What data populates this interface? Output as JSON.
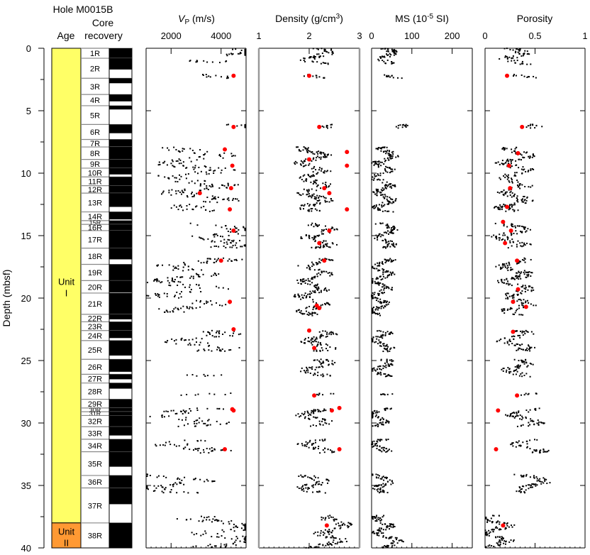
{
  "figure": {
    "hole_title": "Hole M0015B",
    "age_header": "Age",
    "core_header_line1": "Core",
    "core_header_line2": "recovery",
    "depth_axis_label": "Depth (mbsf)",
    "depth_ticks": [
      "0",
      "5",
      "10",
      "15",
      "20",
      "25",
      "30",
      "35",
      "40"
    ]
  },
  "chart_data": [
    {
      "type": "table",
      "name": "age-column",
      "title": "Age",
      "units": [
        {
          "label_line1": "Unit",
          "label_line2": "I",
          "top": 0,
          "bottom": 38.0,
          "color": "#ffff66"
        },
        {
          "label_line1": "Unit",
          "label_line2": "II",
          "top": 38.0,
          "bottom": 40.0,
          "color": "#ff9933"
        }
      ],
      "ylim": [
        0,
        40
      ]
    },
    {
      "type": "table",
      "name": "core-recovery",
      "title": "Core recovery",
      "cores": [
        {
          "label": "1R",
          "top": 0.0,
          "bottom": 0.8,
          "recovered": 0.8
        },
        {
          "label": "2R",
          "top": 0.8,
          "bottom": 2.4,
          "recovered": 0.9
        },
        {
          "label": "3R",
          "top": 2.4,
          "bottom": 3.7,
          "recovered": 0.4
        },
        {
          "label": "4R",
          "top": 3.7,
          "bottom": 4.6,
          "recovered": 0.55
        },
        {
          "label": "5R",
          "top": 4.6,
          "bottom": 6.1,
          "recovered": 0.3
        },
        {
          "label": "6R",
          "top": 6.1,
          "bottom": 7.3,
          "recovered": 0.7
        },
        {
          "label": "7R",
          "top": 7.3,
          "bottom": 7.9,
          "recovered": 0.6
        },
        {
          "label": "8R",
          "top": 7.9,
          "bottom": 8.9,
          "recovered": 1.0
        },
        {
          "label": "9R",
          "top": 8.9,
          "bottom": 9.6,
          "recovered": 0.7
        },
        {
          "label": "10R",
          "top": 9.6,
          "bottom": 10.3,
          "recovered": 0.5
        },
        {
          "label": "11R",
          "top": 10.3,
          "bottom": 11.0,
          "recovered": 0.7
        },
        {
          "label": "12R",
          "top": 11.0,
          "bottom": 11.6,
          "recovered": 0.6
        },
        {
          "label": "13R",
          "top": 11.6,
          "bottom": 13.1,
          "recovered": 1.1
        },
        {
          "label": "14R",
          "top": 13.1,
          "bottom": 13.8,
          "recovered": 0.6
        },
        {
          "label": "15R",
          "top": 13.8,
          "bottom": 14.1,
          "recovered": 0.3
        },
        {
          "label": "16R",
          "top": 14.1,
          "bottom": 14.6,
          "recovered": 0.5
        },
        {
          "label": "17R",
          "top": 14.6,
          "bottom": 16.0,
          "recovered": 1.4
        },
        {
          "label": "18R",
          "top": 16.0,
          "bottom": 17.3,
          "recovered": 0.9
        },
        {
          "label": "19R",
          "top": 17.3,
          "bottom": 18.6,
          "recovered": 1.3
        },
        {
          "label": "20R",
          "top": 18.6,
          "bottom": 19.6,
          "recovered": 0.95
        },
        {
          "label": "21R",
          "top": 19.6,
          "bottom": 21.3,
          "recovered": 1.7
        },
        {
          "label": "22R",
          "top": 21.3,
          "bottom": 21.9,
          "recovered": 0.4
        },
        {
          "label": "23R",
          "top": 21.9,
          "bottom": 22.6,
          "recovered": 0.7
        },
        {
          "label": "24R",
          "top": 22.6,
          "bottom": 23.4,
          "recovered": 0.6
        },
        {
          "label": "25R",
          "top": 23.4,
          "bottom": 24.9,
          "recovered": 1.2
        },
        {
          "label": "26R",
          "top": 24.9,
          "bottom": 26.1,
          "recovered": 1.0
        },
        {
          "label": "27R",
          "top": 26.1,
          "bottom": 26.8,
          "recovered": 0.4
        },
        {
          "label": "28R",
          "top": 26.8,
          "bottom": 28.1,
          "recovered": 0.45
        },
        {
          "label": "29R",
          "top": 28.1,
          "bottom": 28.8,
          "recovered": 0.7
        },
        {
          "label": "30R",
          "top": 28.8,
          "bottom": 29.1,
          "recovered": 0.3
        },
        {
          "label": "31R",
          "top": 29.1,
          "bottom": 29.4,
          "recovered": 0.3
        },
        {
          "label": "32R",
          "top": 29.4,
          "bottom": 30.3,
          "recovered": 0.9
        },
        {
          "label": "33R",
          "top": 30.3,
          "bottom": 31.3,
          "recovered": 0.7
        },
        {
          "label": "34R",
          "top": 31.3,
          "bottom": 32.3,
          "recovered": 1.0
        },
        {
          "label": "35R",
          "top": 32.3,
          "bottom": 34.2,
          "recovered": 1.2
        },
        {
          "label": "36R",
          "top": 34.2,
          "bottom": 35.2,
          "recovered": 1.0
        },
        {
          "label": "37R",
          "top": 35.2,
          "bottom": 38.0,
          "recovered": 1.3
        },
        {
          "label": "38R",
          "top": 38.0,
          "bottom": 40.0,
          "recovered": 2.0
        }
      ],
      "ylim": [
        0,
        40
      ]
    },
    {
      "type": "scatter",
      "name": "vp",
      "title_main": "V",
      "title_sub": "P",
      "title_units": " (m/s)",
      "xlim": [
        1000,
        5000
      ],
      "xticks": [
        2000,
        4000
      ],
      "ylim": [
        0,
        40
      ],
      "logger_zones": [
        [
          0,
          0.6
        ],
        [
          0.9,
          1.2
        ],
        [
          2.1,
          2.4
        ],
        [
          6.1,
          6.4
        ],
        [
          7.9,
          13.1
        ],
        [
          14.0,
          16.0
        ],
        [
          16.8,
          20.0
        ],
        [
          20.2,
          21.2
        ],
        [
          22.6,
          24.3
        ],
        [
          26.1,
          26.3
        ],
        [
          27.6,
          27.8
        ],
        [
          28.8,
          30.3
        ],
        [
          31.3,
          32.4
        ],
        [
          34.1,
          35.6
        ],
        [
          37.4,
          40.0
        ]
      ],
      "logger_center": [
        [
          0,
          4300
        ],
        [
          6.2,
          3800
        ],
        [
          8.5,
          3000
        ],
        [
          10,
          2800
        ],
        [
          12,
          3200
        ],
        [
          15,
          4300
        ],
        [
          18,
          2600
        ],
        [
          20,
          2600
        ],
        [
          23,
          3300
        ],
        [
          29.5,
          2600
        ],
        [
          32,
          3000
        ],
        [
          35,
          2000
        ],
        [
          38.5,
          4600
        ],
        [
          40,
          4300
        ]
      ],
      "series": [
        {
          "name": "MSCL",
          "color": "#000000"
        },
        {
          "name": "Discrete",
          "color": "#ff0000",
          "points": [
            [
              2.2,
              4500
            ],
            [
              6.3,
              4500
            ],
            [
              8.1,
              4150
            ],
            [
              9.4,
              4450
            ],
            [
              11.2,
              4400
            ],
            [
              11.6,
              3150
            ],
            [
              12.9,
              4350
            ],
            [
              14.6,
              4500
            ],
            [
              17.0,
              4000
            ],
            [
              20.3,
              4350
            ],
            [
              22.5,
              4500
            ],
            [
              28.9,
              4450
            ],
            [
              29.0,
              4500
            ],
            [
              32.1,
              4150
            ]
          ]
        }
      ]
    },
    {
      "type": "scatter",
      "name": "density",
      "title_main": "Density (g/cm",
      "title_sup": "3",
      "title_end": ")",
      "xlim": [
        1,
        3
      ],
      "xticks": [
        1,
        2,
        3
      ],
      "ylim": [
        0,
        40
      ],
      "logger_zones": [
        [
          0,
          1.3
        ],
        [
          2.1,
          2.4
        ],
        [
          6.1,
          6.4
        ],
        [
          7.9,
          13.1
        ],
        [
          14.0,
          16.0
        ],
        [
          16.8,
          21.4
        ],
        [
          22.6,
          24.3
        ],
        [
          24.9,
          26.3
        ],
        [
          27.6,
          27.8
        ],
        [
          28.8,
          30.3
        ],
        [
          31.3,
          32.4
        ],
        [
          34.1,
          35.6
        ],
        [
          37.4,
          40.0
        ]
      ],
      "logger_center": [
        [
          0,
          2.2
        ],
        [
          6.2,
          2.15
        ],
        [
          9,
          2.05
        ],
        [
          12,
          2.1
        ],
        [
          15,
          2.2
        ],
        [
          18,
          2.1
        ],
        [
          20,
          2.05
        ],
        [
          23,
          2.2
        ],
        [
          29.5,
          2.1
        ],
        [
          32,
          2.15
        ],
        [
          35,
          2.05
        ],
        [
          37.6,
          2.6
        ],
        [
          39,
          2.45
        ],
        [
          40,
          2.3
        ]
      ],
      "series": [
        {
          "name": "MSCL",
          "color": "#000000"
        },
        {
          "name": "Discrete",
          "color": "#ff0000",
          "points": [
            [
              2.2,
              2.0
            ],
            [
              6.3,
              2.2
            ],
            [
              8.3,
              2.75
            ],
            [
              8.9,
              2.0
            ],
            [
              9.4,
              2.75
            ],
            [
              11.2,
              2.3
            ],
            [
              11.6,
              2.4
            ],
            [
              12.9,
              2.75
            ],
            [
              14.6,
              2.4
            ],
            [
              15.6,
              2.2
            ],
            [
              17.0,
              2.3
            ],
            [
              20.6,
              2.15
            ],
            [
              20.8,
              2.2
            ],
            [
              22.6,
              2.0
            ],
            [
              24.0,
              2.1
            ],
            [
              27.8,
              2.1
            ],
            [
              28.8,
              2.6
            ],
            [
              29.0,
              2.45
            ],
            [
              32.1,
              2.6
            ],
            [
              38.2,
              2.35
            ]
          ]
        }
      ]
    },
    {
      "type": "scatter",
      "name": "ms",
      "title_main": "MS (10",
      "title_sup": "-5",
      "title_end": " SI)",
      "xlim": [
        0,
        250
      ],
      "xticks": [
        0,
        100,
        200
      ],
      "ylim": [
        0,
        40
      ],
      "logger_zones": [
        [
          0,
          1.3
        ],
        [
          2.1,
          2.4
        ],
        [
          6.1,
          6.4
        ],
        [
          7.9,
          13.1
        ],
        [
          14.0,
          16.0
        ],
        [
          16.8,
          21.4
        ],
        [
          22.6,
          24.3
        ],
        [
          24.9,
          26.3
        ],
        [
          27.6,
          27.8
        ],
        [
          28.8,
          30.3
        ],
        [
          31.3,
          32.4
        ],
        [
          34.1,
          35.6
        ],
        [
          37.4,
          40.0
        ]
      ],
      "logger_center": [
        [
          0,
          30
        ],
        [
          2.2,
          60
        ],
        [
          6.2,
          60
        ],
        [
          10,
          25
        ],
        [
          14.5,
          40
        ],
        [
          18,
          25
        ],
        [
          22,
          15
        ],
        [
          25,
          30
        ],
        [
          30,
          15
        ],
        [
          34,
          25
        ],
        [
          35.5,
          30
        ],
        [
          38.5,
          25
        ],
        [
          40,
          60
        ]
      ],
      "series": [
        {
          "name": "MSCL",
          "color": "#000000"
        }
      ]
    },
    {
      "type": "scatter",
      "name": "porosity",
      "title_main": "Porosity",
      "xlim": [
        0,
        1
      ],
      "xticks": [
        0,
        0.5,
        1
      ],
      "ylim": [
        0,
        40
      ],
      "logger_zones": [
        [
          0,
          1.3
        ],
        [
          2.1,
          2.4
        ],
        [
          6.1,
          6.4
        ],
        [
          7.9,
          13.1
        ],
        [
          14.0,
          16.0
        ],
        [
          16.8,
          21.4
        ],
        [
          22.6,
          24.3
        ],
        [
          24.9,
          26.3
        ],
        [
          27.6,
          27.8
        ],
        [
          28.8,
          30.3
        ],
        [
          31.3,
          32.4
        ],
        [
          34.1,
          35.6
        ],
        [
          37.4,
          40.0
        ]
      ],
      "logger_center": [
        [
          0,
          0.25
        ],
        [
          2.2,
          0.45
        ],
        [
          6.2,
          0.4
        ],
        [
          9,
          0.3
        ],
        [
          12,
          0.3
        ],
        [
          15,
          0.25
        ],
        [
          18,
          0.3
        ],
        [
          20,
          0.35
        ],
        [
          23,
          0.3
        ],
        [
          26,
          0.35
        ],
        [
          29.5,
          0.4
        ],
        [
          32,
          0.45
        ],
        [
          35,
          0.5
        ],
        [
          37.5,
          0.1
        ],
        [
          39,
          0.1
        ],
        [
          40,
          0.15
        ]
      ],
      "series": [
        {
          "name": "MSCL",
          "color": "#000000"
        },
        {
          "name": "Discrete",
          "color": "#ff0000",
          "points": [
            [
              2.2,
              0.22
            ],
            [
              6.3,
              0.37
            ],
            [
              8.4,
              0.33
            ],
            [
              9.4,
              0.24
            ],
            [
              11.2,
              0.25
            ],
            [
              12.7,
              0.22
            ],
            [
              13.9,
              0.18
            ],
            [
              14.6,
              0.26
            ],
            [
              15.6,
              0.2
            ],
            [
              17.0,
              0.32
            ],
            [
              19.3,
              0.33
            ],
            [
              20.3,
              0.28
            ],
            [
              20.7,
              0.41
            ],
            [
              22.7,
              0.28
            ],
            [
              27.8,
              0.32
            ],
            [
              29.0,
              0.13
            ],
            [
              32.1,
              0.11
            ],
            [
              38.2,
              0.18
            ]
          ]
        }
      ]
    }
  ]
}
